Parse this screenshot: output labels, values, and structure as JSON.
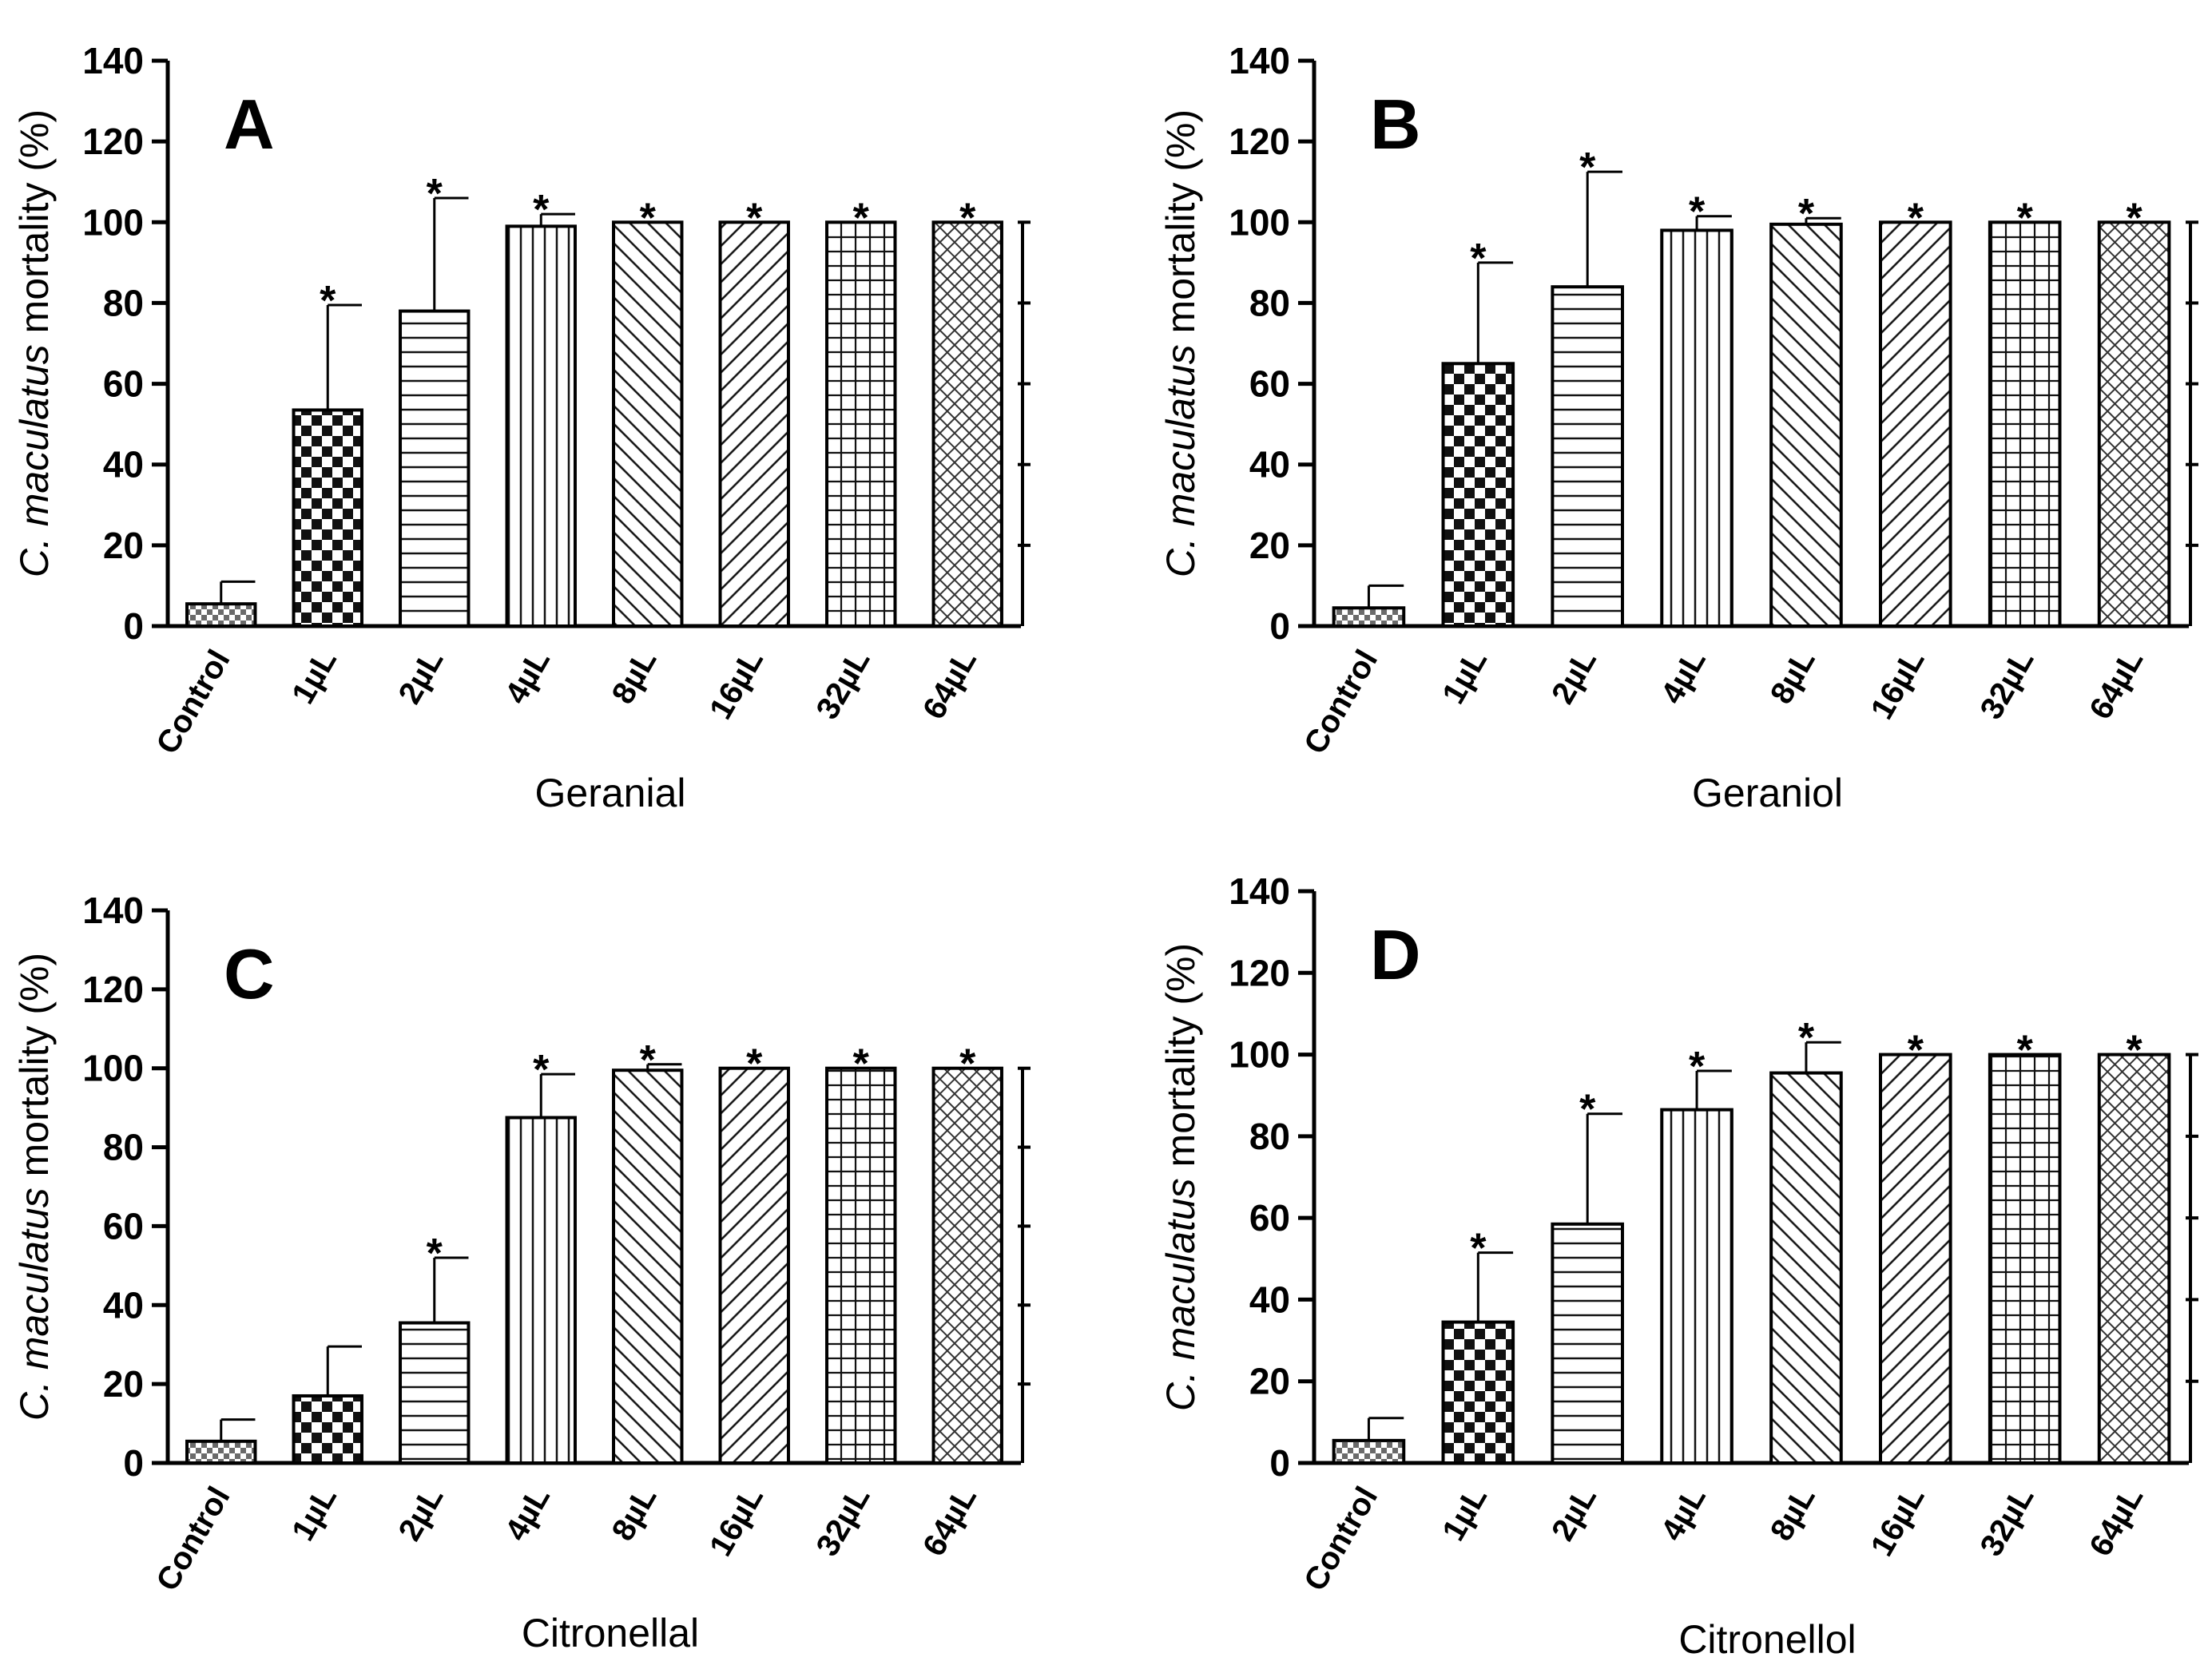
{
  "chart_data": [
    {
      "type": "bar",
      "panel_label": "A",
      "xlabel": "Geranial",
      "ylabel": [
        "C. ",
        "maculatus",
        " mortality (%)"
      ],
      "ylim": [
        0,
        140
      ],
      "yticks": [
        "0",
        "20",
        "40",
        "60",
        "80",
        "100",
        "120",
        "140"
      ],
      "categories": [
        "Control",
        "1µL",
        "2µL",
        "4µL",
        "8µL",
        "16µL",
        "32µL",
        "64µL"
      ],
      "values": [
        5.5,
        53.5,
        78,
        99,
        100,
        100,
        100,
        100
      ],
      "errors": [
        5.5,
        26,
        28,
        3,
        0,
        0,
        0,
        0
      ],
      "significance": [
        "",
        "*",
        "*",
        "*",
        "*",
        "*",
        "*",
        "*"
      ]
    },
    {
      "type": "bar",
      "panel_label": "B",
      "xlabel": "Geraniol",
      "ylabel": [
        "C. ",
        "maculatus",
        " mortality (%)"
      ],
      "ylim": [
        0,
        140
      ],
      "yticks": [
        "0",
        "20",
        "40",
        "60",
        "80",
        "100",
        "120",
        "140"
      ],
      "categories": [
        "Control",
        "1µL",
        "2µL",
        "4µL",
        "8µL",
        "16µL",
        "32µL",
        "64µL"
      ],
      "values": [
        4.5,
        65,
        84,
        98,
        99.5,
        100,
        100,
        100
      ],
      "errors": [
        5.5,
        25,
        28.5,
        3.5,
        1.5,
        0,
        0,
        0
      ],
      "significance": [
        "",
        "*",
        "*",
        "*",
        "*",
        "*",
        "*",
        "*"
      ]
    },
    {
      "type": "bar",
      "panel_label": "C",
      "xlabel": "Citronellal",
      "ylabel": [
        "C. ",
        "maculatus",
        " mortality (%)"
      ],
      "ylim": [
        0,
        140
      ],
      "yticks": [
        "0",
        "20",
        "40",
        "60",
        "80",
        "100",
        "120",
        "140"
      ],
      "categories": [
        "Control",
        "1µL",
        "2µL",
        "4µL",
        "8µL",
        "16µL",
        "32µL",
        "64µL"
      ],
      "values": [
        5.5,
        17,
        35.5,
        87.5,
        99.5,
        100,
        100,
        100
      ],
      "errors": [
        5.5,
        12.5,
        16.5,
        11,
        1.5,
        0,
        0,
        0
      ],
      "significance": [
        "",
        "",
        "*",
        "*",
        "*",
        "*",
        "*",
        "*"
      ]
    },
    {
      "type": "bar",
      "panel_label": "D",
      "xlabel": "Citronellol",
      "ylabel": [
        "C. ",
        "maculatus",
        " mortality (%)"
      ],
      "ylim": [
        0,
        140
      ],
      "yticks": [
        "0",
        "20",
        "40",
        "60",
        "80",
        "100",
        "120",
        "140"
      ],
      "categories": [
        "Control",
        "1µL",
        "2µL",
        "4µL",
        "8µL",
        "16µL",
        "32µL",
        "64µL"
      ],
      "values": [
        5.5,
        34.5,
        58.5,
        86.5,
        95.5,
        100,
        100,
        100
      ],
      "errors": [
        5.5,
        17,
        27,
        9.5,
        7.5,
        0,
        0,
        0
      ],
      "significance": [
        "",
        "*",
        "*",
        "*",
        "*",
        "*",
        "*",
        "*"
      ]
    }
  ]
}
